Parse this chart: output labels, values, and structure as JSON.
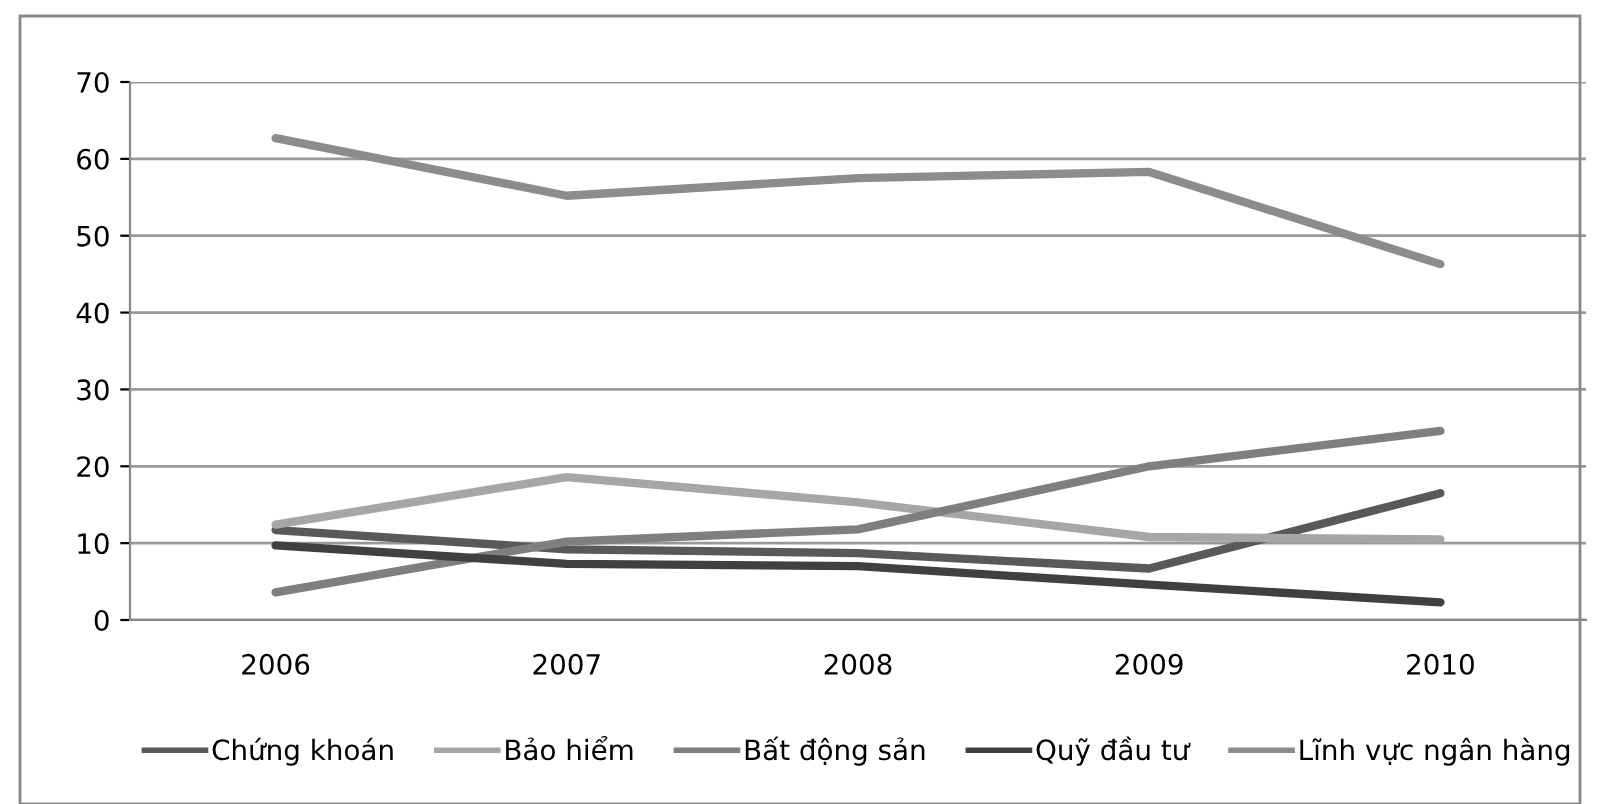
{
  "chart_data": {
    "type": "line",
    "categories": [
      "2006",
      "2007",
      "2008",
      "2009",
      "2010"
    ],
    "series": [
      {
        "name": "Chứng khoán",
        "color": "#595959",
        "values": [
          11.7,
          9.2,
          8.7,
          6.7,
          16.5
        ]
      },
      {
        "name": "Bảo hiểm",
        "color": "#a6a6a6",
        "values": [
          12.4,
          18.6,
          15.3,
          10.8,
          10.5
        ]
      },
      {
        "name": "Bất động sản",
        "color": "#7f7f7f",
        "values": [
          3.6,
          10.2,
          11.8,
          20.0,
          24.6
        ]
      },
      {
        "name": "Quỹ đầu tư",
        "color": "#404040",
        "values": [
          9.7,
          7.3,
          7.0,
          4.6,
          2.3
        ]
      },
      {
        "name": "Lĩnh vực ngân hàng",
        "color": "#8c8c8c",
        "values": [
          62.7,
          55.2,
          57.5,
          58.3,
          46.3
        ]
      }
    ],
    "ylim": [
      0,
      70
    ],
    "yticks": [
      0,
      10,
      20,
      30,
      40,
      50,
      60,
      70
    ],
    "grid": "y",
    "legend": "bottom",
    "marker": "none",
    "line_style": "solid"
  }
}
